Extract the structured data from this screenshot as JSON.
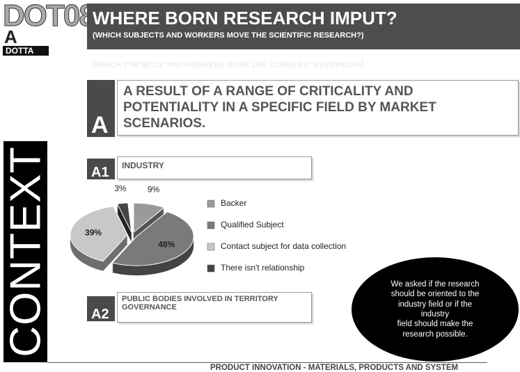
{
  "logo": {
    "main": "DOT08",
    "letter": "A",
    "sub": "DOTTA"
  },
  "header": {
    "title": "WHERE BORN RESEARCH IMPUT?",
    "subtitle": "(WHICH SUBJECTS AND WORKERS  MOVE THE SCIENTIFIC RESEARCH?)"
  },
  "side_label": "CONTEXT",
  "section_a": {
    "letter": "A",
    "text": "A RESULT OF A RANGE OF CRITICALITY AND POTENTIALITY IN A SPECIFIC FIELD BY MARKET SCENARIOS."
  },
  "section_a1": {
    "letter": "A1",
    "text": "INDUSTRY"
  },
  "section_a2": {
    "letter": "A2",
    "text": "PUBLIC BODIES INVOLVED IN TERRITORY GOVERNANCE"
  },
  "chart_data": {
    "type": "pie",
    "categories": [
      "Backer",
      "Qualified Subject",
      "Contact subject for data collection",
      "There isn't relationship"
    ],
    "values": [
      9,
      48,
      39,
      3
    ],
    "value_labels": [
      "9%",
      "48%",
      "39%",
      "3%"
    ],
    "colors": [
      "#9a9a9a",
      "#7a7a7a",
      "#c8c8c8",
      "#444444"
    ]
  },
  "note": {
    "lines": [
      "We asked if the research",
      "should be oriented to the",
      "industry field or if the",
      "industry",
      "field should make the",
      "research possible."
    ]
  },
  "footer": "PRODUCT INNOVATION - MATERIALS, PRODUCTS AND SYSTEM"
}
